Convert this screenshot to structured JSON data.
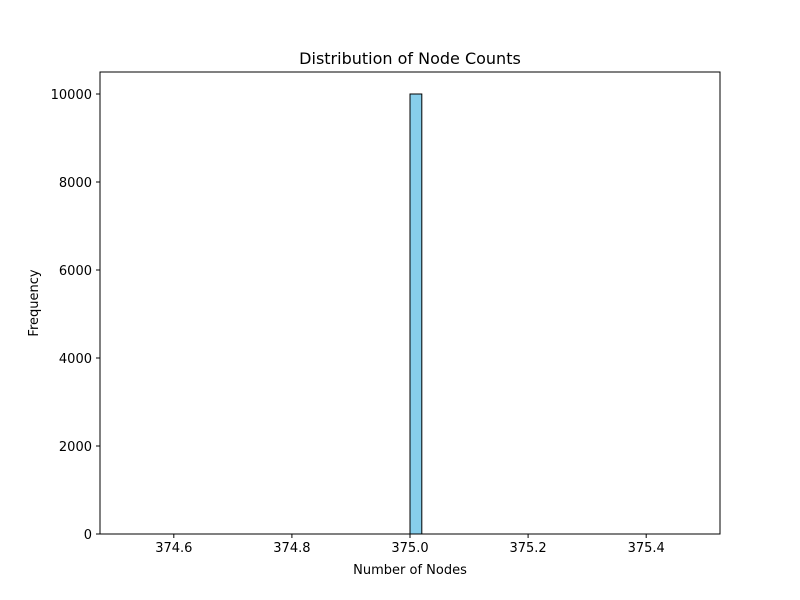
{
  "chart_data": {
    "type": "bar",
    "title": "Distribution of Node Counts",
    "xlabel": "Number of Nodes",
    "ylabel": "Frequency",
    "xlim": [
      374.475,
      375.525
    ],
    "ylim": [
      0,
      10500
    ],
    "xticks": [
      374.6,
      374.8,
      375.0,
      375.2,
      375.4
    ],
    "xtick_labels": [
      "374.6",
      "374.8",
      "375.0",
      "375.2",
      "375.4"
    ],
    "yticks": [
      0,
      2000,
      4000,
      6000,
      8000,
      10000
    ],
    "ytick_labels": [
      "0",
      "2000",
      "4000",
      "6000",
      "8000",
      "10000"
    ],
    "bins": {
      "start": 374.5,
      "end": 375.5,
      "count": 50
    },
    "bars": [
      {
        "x0": 375.0,
        "x1": 375.02,
        "value": 10000
      }
    ],
    "bar_color": "#87ceeb",
    "edge_color": "#000000",
    "grid": false,
    "legend": "none"
  }
}
